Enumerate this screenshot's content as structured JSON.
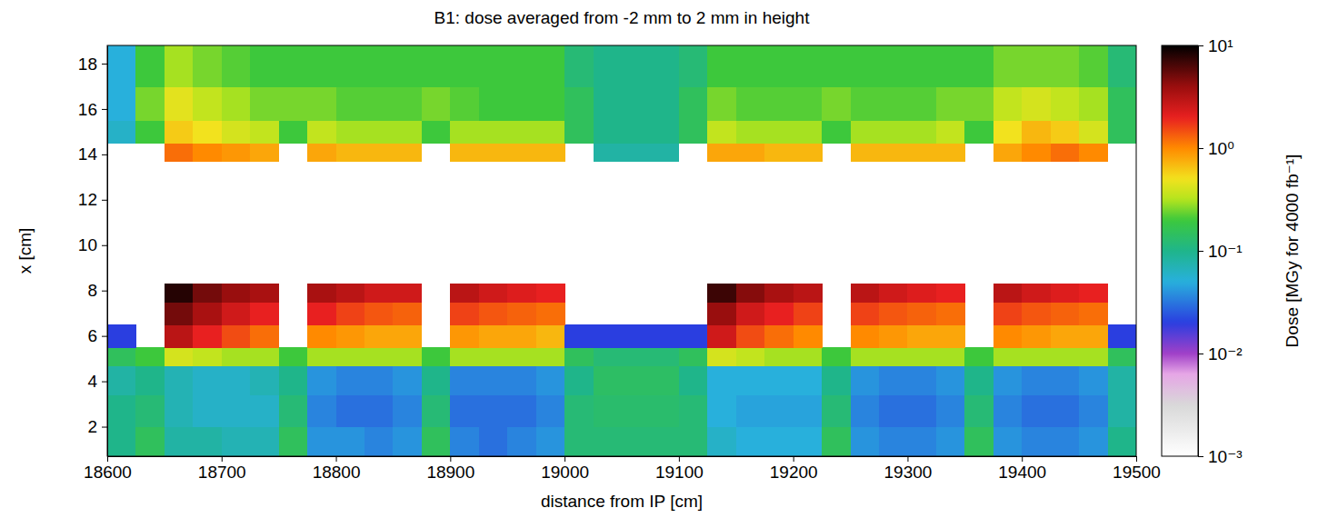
{
  "chart_data": {
    "type": "heatmap",
    "title": "B1: dose averaged from -2 mm to 2 mm in height",
    "x_label": "distance from IP [cm]",
    "y_label": "x [cm]",
    "xlim": [
      18600,
      19500
    ],
    "xticks": [
      18600,
      18700,
      18800,
      18900,
      19000,
      19100,
      19200,
      19300,
      19400,
      19500
    ],
    "ylim": [
      0.7,
      18.8
    ],
    "yticks": [
      2,
      4,
      6,
      8,
      10,
      12,
      14,
      16,
      18
    ],
    "cells": {
      "x_edges": [
        18600,
        18625,
        18650,
        18675,
        18700,
        18725,
        18750,
        18775,
        18800,
        18825,
        18850,
        18875,
        18900,
        18925,
        18950,
        18975,
        19000,
        19025,
        19050,
        19075,
        19100,
        19125,
        19150,
        19175,
        19200,
        19225,
        19250,
        19275,
        19300,
        19325,
        19350,
        19375,
        19400,
        19425,
        19450,
        19475,
        19500
      ],
      "y_edges": [
        0.7,
        2,
        3.4,
        4.7,
        5.5,
        6.5,
        7.5,
        8.3,
        13.7,
        14.5,
        15.5,
        17,
        18.8
      ],
      "values": [
        [
          0.1,
          0.15,
          0.08,
          0.08,
          0.07,
          0.07,
          0.15,
          0.04,
          0.04,
          0.035,
          0.04,
          0.15,
          0.035,
          0.03,
          0.035,
          0.04,
          0.12,
          0.12,
          0.12,
          0.12,
          0.12,
          0.06,
          0.05,
          0.05,
          0.05,
          0.15,
          0.04,
          0.035,
          0.035,
          0.04,
          0.15,
          0.04,
          0.035,
          0.035,
          0.04,
          0.1
        ],
        [
          0.1,
          0.12,
          0.07,
          0.06,
          0.06,
          0.06,
          0.12,
          0.035,
          0.03,
          0.03,
          0.035,
          0.12,
          0.03,
          0.03,
          0.03,
          0.035,
          0.12,
          0.13,
          0.13,
          0.13,
          0.12,
          0.05,
          0.045,
          0.045,
          0.045,
          0.12,
          0.035,
          0.03,
          0.03,
          0.035,
          0.12,
          0.035,
          0.03,
          0.03,
          0.035,
          0.08
        ],
        [
          0.08,
          0.1,
          0.07,
          0.06,
          0.06,
          0.07,
          0.1,
          0.04,
          0.035,
          0.035,
          0.04,
          0.1,
          0.035,
          0.035,
          0.035,
          0.04,
          0.1,
          0.14,
          0.14,
          0.14,
          0.1,
          0.05,
          0.05,
          0.05,
          0.05,
          0.1,
          0.04,
          0.035,
          0.035,
          0.04,
          0.1,
          0.04,
          0.035,
          0.035,
          0.04,
          0.08
        ],
        [
          0.15,
          0.2,
          0.4,
          0.35,
          0.3,
          0.3,
          0.2,
          0.3,
          0.3,
          0.3,
          0.3,
          0.2,
          0.3,
          0.3,
          0.3,
          0.3,
          0.15,
          0.12,
          0.12,
          0.12,
          0.15,
          0.4,
          0.35,
          0.3,
          0.3,
          0.2,
          0.3,
          0.3,
          0.3,
          0.3,
          0.2,
          0.3,
          0.3,
          0.3,
          0.3,
          0.15
        ],
        [
          0.02,
          null,
          3,
          2,
          1.5,
          1.2,
          null,
          1,
          0.9,
          0.8,
          0.8,
          null,
          0.9,
          0.8,
          0.8,
          0.7,
          0.02,
          0.02,
          0.02,
          0.02,
          0.02,
          2.5,
          1.5,
          1.2,
          1,
          null,
          1,
          0.9,
          0.8,
          0.8,
          null,
          1,
          0.9,
          0.8,
          0.8,
          0.02
        ],
        [
          null,
          null,
          5,
          3.5,
          2.5,
          2,
          null,
          2,
          1.6,
          1.4,
          1.3,
          null,
          1.6,
          1.4,
          1.3,
          1.2,
          null,
          null,
          null,
          null,
          null,
          4,
          2.5,
          2,
          1.6,
          null,
          1.6,
          1.4,
          1.3,
          1.2,
          null,
          1.6,
          1.4,
          1.3,
          1.2,
          null
        ],
        [
          null,
          null,
          8,
          5,
          4,
          3.5,
          null,
          3.5,
          3,
          2.5,
          2.5,
          null,
          3,
          2.5,
          2.2,
          2,
          null,
          null,
          null,
          null,
          null,
          7,
          4.5,
          3.5,
          3,
          null,
          3,
          2.5,
          2.2,
          2,
          null,
          3,
          2.5,
          2.2,
          2,
          null
        ],
        [
          null,
          null,
          null,
          null,
          null,
          null,
          null,
          null,
          null,
          null,
          null,
          null,
          null,
          null,
          null,
          null,
          null,
          null,
          null,
          null,
          null,
          null,
          null,
          null,
          null,
          null,
          null,
          null,
          null,
          null,
          null,
          null,
          null,
          null,
          null,
          null
        ],
        [
          null,
          null,
          1.2,
          1,
          0.9,
          0.8,
          null,
          0.8,
          0.7,
          0.7,
          0.7,
          null,
          0.7,
          0.7,
          0.7,
          0.7,
          null,
          0.08,
          0.08,
          0.08,
          null,
          0.8,
          0.8,
          0.7,
          0.7,
          null,
          0.7,
          0.7,
          0.7,
          0.7,
          null,
          0.8,
          1,
          1.2,
          1,
          null
        ],
        [
          0.06,
          0.2,
          0.6,
          0.5,
          0.4,
          0.35,
          0.2,
          0.35,
          0.3,
          0.3,
          0.3,
          0.2,
          0.3,
          0.3,
          0.3,
          0.3,
          0.15,
          0.1,
          0.1,
          0.1,
          0.15,
          0.35,
          0.3,
          0.3,
          0.3,
          0.2,
          0.3,
          0.3,
          0.3,
          0.35,
          0.2,
          0.5,
          0.7,
          0.6,
          0.4,
          0.15
        ],
        [
          0.05,
          0.25,
          0.45,
          0.35,
          0.3,
          0.25,
          0.25,
          0.25,
          0.22,
          0.22,
          0.22,
          0.25,
          0.22,
          0.2,
          0.2,
          0.2,
          0.15,
          0.1,
          0.1,
          0.1,
          0.15,
          0.25,
          0.22,
          0.22,
          0.22,
          0.25,
          0.22,
          0.22,
          0.22,
          0.25,
          0.25,
          0.35,
          0.4,
          0.35,
          0.3,
          0.15
        ],
        [
          0.05,
          0.2,
          0.3,
          0.25,
          0.22,
          0.2,
          0.2,
          0.2,
          0.2,
          0.2,
          0.2,
          0.2,
          0.2,
          0.2,
          0.2,
          0.2,
          0.12,
          0.1,
          0.1,
          0.1,
          0.12,
          0.2,
          0.2,
          0.2,
          0.2,
          0.2,
          0.2,
          0.2,
          0.2,
          0.2,
          0.2,
          0.25,
          0.25,
          0.25,
          0.22,
          0.12
        ]
      ]
    },
    "colorbar": {
      "label": "Dose [MGy for 4000 fb⁻¹]",
      "range": [
        0.001,
        10
      ],
      "log": true,
      "ticks": [
        {
          "value": 0.001,
          "label": "10⁻³"
        },
        {
          "value": 0.01,
          "label": "10⁻²"
        },
        {
          "value": 0.1,
          "label": "10⁻¹"
        },
        {
          "value": 1,
          "label": "10⁰"
        },
        {
          "value": 10,
          "label": "10¹"
        }
      ]
    }
  }
}
